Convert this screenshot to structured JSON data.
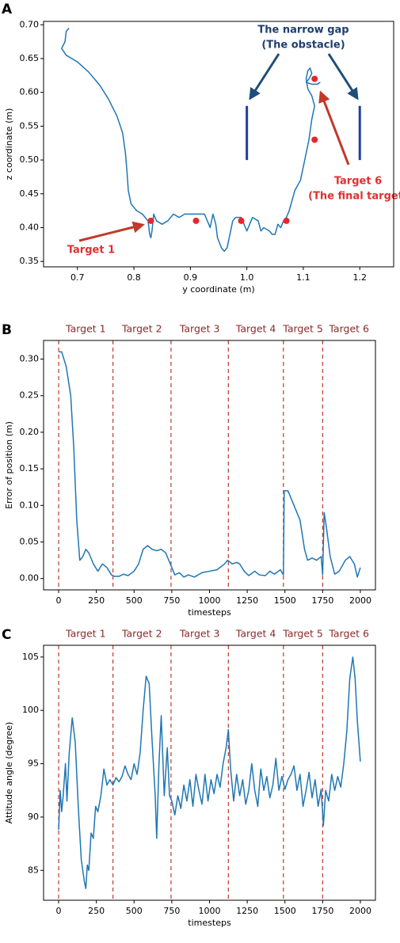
{
  "chart_data": [
    {
      "type": "trajectory",
      "panel_label": "A",
      "xlabel": "y coordinate (m)",
      "ylabel": "z coordinate (m)",
      "xlim": [
        0.64,
        1.26
      ],
      "ylim": [
        0.342,
        0.705
      ],
      "xticks": [
        0.7,
        0.8,
        0.9,
        {
          "value": 1.0,
          "label": "1.0"
        },
        1.1,
        1.2
      ],
      "yticks": [
        0.35,
        {
          "value": 0.4,
          "label": "0.40"
        },
        0.45,
        {
          "value": 0.5,
          "label": "0.50"
        },
        0.55,
        {
          "value": 0.6,
          "label": "0.60"
        },
        0.65,
        {
          "value": 0.7,
          "label": "0.70"
        }
      ],
      "path": {
        "color": "#1f77b4",
        "x": [
          0.685,
          0.68,
          0.678,
          0.672,
          0.68,
          0.7,
          0.72,
          0.74,
          0.755,
          0.77,
          0.78,
          0.785,
          0.788,
          0.79,
          0.795,
          0.805,
          0.815,
          0.825,
          0.828,
          0.83,
          0.832,
          0.835,
          0.84,
          0.85,
          0.86,
          0.87,
          0.88,
          0.89,
          0.9,
          0.915,
          0.925,
          0.93,
          0.935,
          0.94,
          0.945,
          0.948,
          0.955,
          0.96,
          0.965,
          0.97,
          0.975,
          0.98,
          0.99,
          0.995,
          1.0,
          1.005,
          1.01,
          1.02,
          1.025,
          1.03,
          1.04,
          1.045,
          1.05,
          1.055,
          1.06,
          1.065,
          1.07,
          1.075,
          1.08,
          1.085,
          1.095,
          1.1,
          1.105,
          1.11,
          1.115,
          1.12,
          1.115,
          1.108,
          1.105,
          1.108,
          1.112,
          1.115,
          1.11,
          1.105,
          1.115,
          1.125,
          1.13
        ],
        "y": [
          0.695,
          0.69,
          0.675,
          0.665,
          0.655,
          0.645,
          0.63,
          0.61,
          0.59,
          0.565,
          0.54,
          0.51,
          0.48,
          0.455,
          0.435,
          0.425,
          0.42,
          0.41,
          0.39,
          0.385,
          0.395,
          0.42,
          0.41,
          0.405,
          0.41,
          0.42,
          0.415,
          0.42,
          0.42,
          0.42,
          0.42,
          0.41,
          0.4,
          0.42,
          0.405,
          0.385,
          0.37,
          0.365,
          0.37,
          0.39,
          0.41,
          0.415,
          0.415,
          0.405,
          0.395,
          0.405,
          0.415,
          0.41,
          0.395,
          0.4,
          0.395,
          0.39,
          0.39,
          0.405,
          0.4,
          0.41,
          0.415,
          0.425,
          0.44,
          0.455,
          0.47,
          0.49,
          0.51,
          0.53,
          0.56,
          0.58,
          0.595,
          0.605,
          0.62,
          0.632,
          0.636,
          0.628,
          0.62,
          0.615,
          0.612,
          0.612,
          0.615
        ]
      },
      "targets": {
        "color": "#e8262a",
        "x": [
          0.83,
          0.91,
          0.99,
          1.07,
          1.12,
          1.12
        ],
        "y": [
          0.41,
          0.41,
          0.41,
          0.41,
          0.53,
          0.62
        ]
      },
      "obstacles": {
        "color": "#1f3fa0",
        "x": [
          1.0,
          1.2
        ],
        "y_from": [
          0.5,
          0.5
        ],
        "y_to": [
          0.58,
          0.58
        ]
      },
      "annotations": [
        {
          "lines": [
            "The narrow gap",
            "(The obstacle)"
          ],
          "color": "#1f3f6e"
        },
        {
          "lines": [
            "Target 6",
            "(The final target)"
          ],
          "color": "#e03030"
        },
        {
          "lines": [
            "Target 1"
          ],
          "color": "#e03030"
        }
      ]
    },
    {
      "type": "line",
      "panel_label": "B",
      "xlabel": "timesteps",
      "ylabel": "Error of position (m)",
      "xlim": [
        -100,
        2100
      ],
      "ylim": [
        -0.0155,
        0.3255
      ],
      "xticks": [
        0,
        250,
        500,
        750,
        1000,
        1250,
        1500,
        1750,
        2000
      ],
      "yticks": [
        {
          "value": 0,
          "label": "0.00"
        },
        0.05,
        {
          "value": 0.1,
          "label": "0.10"
        },
        0.15,
        {
          "value": 0.2,
          "label": "0.20"
        },
        0.25,
        {
          "value": 0.3,
          "label": "0.30"
        }
      ],
      "target_lines": [
        0,
        360,
        745,
        1125,
        1490,
        1750
      ],
      "target_line_color": "#c0392b",
      "target_labels": [
        "Target 1",
        "Target 2",
        "Target 3",
        "Target 4",
        "Target 5",
        "Target 6"
      ],
      "target_label_color": "#8b2a2a",
      "color": "#1f77b4",
      "x": [
        0,
        20,
        50,
        80,
        100,
        120,
        140,
        160,
        180,
        200,
        230,
        260,
        290,
        320,
        350,
        370,
        400,
        430,
        460,
        500,
        530,
        560,
        590,
        620,
        650,
        680,
        710,
        740,
        770,
        800,
        830,
        860,
        900,
        950,
        1000,
        1050,
        1100,
        1120,
        1150,
        1180,
        1200,
        1230,
        1260,
        1300,
        1330,
        1370,
        1400,
        1430,
        1470,
        1490,
        1495,
        1520,
        1560,
        1600,
        1630,
        1650,
        1680,
        1710,
        1740,
        1750,
        1760,
        1775,
        1800,
        1830,
        1860,
        1900,
        1930,
        1960,
        1980,
        2000
      ],
      "values": [
        0.31,
        0.31,
        0.29,
        0.25,
        0.18,
        0.08,
        0.025,
        0.03,
        0.04,
        0.035,
        0.02,
        0.01,
        0.02,
        0.015,
        0.005,
        0.003,
        0.003,
        0.006,
        0.004,
        0.01,
        0.02,
        0.04,
        0.045,
        0.04,
        0.038,
        0.04,
        0.035,
        0.02,
        0.005,
        0.008,
        0.002,
        0.005,
        0.002,
        0.008,
        0.01,
        0.012,
        0.02,
        0.025,
        0.02,
        0.022,
        0.02,
        0.01,
        0.004,
        0.01,
        0.005,
        0.004,
        0.01,
        0.006,
        0.012,
        0.005,
        0.12,
        0.12,
        0.1,
        0.08,
        0.04,
        0.025,
        0.028,
        0.025,
        0.03,
        0.005,
        0.09,
        0.07,
        0.03,
        0.006,
        0.01,
        0.025,
        0.03,
        0.02,
        0.002,
        0.015
      ]
    },
    {
      "type": "line",
      "panel_label": "C",
      "xlabel": "timesteps",
      "ylabel": "Attitude angle (degree)",
      "xlim": [
        -100,
        2100
      ],
      "ylim": [
        82.2,
        106.1
      ],
      "xticks": [
        0,
        250,
        500,
        750,
        1000,
        1250,
        1500,
        1750,
        2000
      ],
      "yticks": [
        85,
        90,
        95,
        100,
        105
      ],
      "target_lines": [
        0,
        360,
        745,
        1125,
        1490,
        1750
      ],
      "target_line_color": "#c0392b",
      "target_labels": [
        "Target 1",
        "Target 2",
        "Target 3",
        "Target 4",
        "Target 5",
        "Target 6"
      ],
      "target_label_color": "#8b2a2a",
      "color": "#1f77b4",
      "x": [
        0,
        10,
        20,
        30,
        45,
        55,
        70,
        90,
        110,
        130,
        150,
        170,
        180,
        190,
        200,
        215,
        230,
        245,
        260,
        280,
        300,
        320,
        340,
        360,
        380,
        400,
        420,
        440,
        460,
        480,
        500,
        520,
        540,
        560,
        580,
        600,
        620,
        640,
        650,
        665,
        680,
        700,
        720,
        735,
        750,
        770,
        790,
        810,
        830,
        850,
        870,
        890,
        910,
        930,
        950,
        970,
        990,
        1010,
        1030,
        1050,
        1070,
        1090,
        1110,
        1125,
        1140,
        1160,
        1180,
        1200,
        1220,
        1240,
        1260,
        1280,
        1300,
        1320,
        1340,
        1360,
        1380,
        1400,
        1420,
        1440,
        1460,
        1480,
        1500,
        1520,
        1540,
        1560,
        1580,
        1600,
        1620,
        1640,
        1660,
        1680,
        1700,
        1720,
        1740,
        1755,
        1770,
        1790,
        1810,
        1830,
        1850,
        1870,
        1890,
        1910,
        1930,
        1950,
        1965,
        1980,
        2000
      ],
      "values": [
        88.8,
        92.5,
        90.5,
        92,
        95,
        91.5,
        96,
        99.3,
        97,
        91,
        86,
        84,
        83.3,
        85.5,
        85,
        88.5,
        88,
        91,
        90.5,
        92,
        94.5,
        93,
        93.5,
        93,
        93.7,
        93.3,
        93.8,
        94.8,
        94,
        93.5,
        95,
        94,
        96,
        100,
        103.2,
        102.5,
        97,
        92,
        88,
        95,
        99.5,
        92,
        96.5,
        92,
        91.5,
        90.2,
        92,
        90.8,
        93,
        91.5,
        93.5,
        91,
        94,
        92.5,
        91.2,
        94,
        91.5,
        93.5,
        92.2,
        94,
        92.8,
        95,
        96.5,
        98.2,
        94.5,
        91.5,
        94,
        92,
        93.5,
        91.2,
        92.5,
        95,
        92.5,
        91,
        94.5,
        92.5,
        93.8,
        91.8,
        93,
        95.5,
        92.5,
        93.8,
        92.6,
        93.5,
        94,
        94.8,
        92.5,
        94,
        91,
        92.5,
        94.2,
        91.8,
        93.5,
        91,
        92.6,
        89.2,
        92.5,
        91.5,
        94,
        92.5,
        93.8,
        92.8,
        95,
        98,
        103,
        105,
        103,
        99,
        95.2
      ]
    }
  ]
}
